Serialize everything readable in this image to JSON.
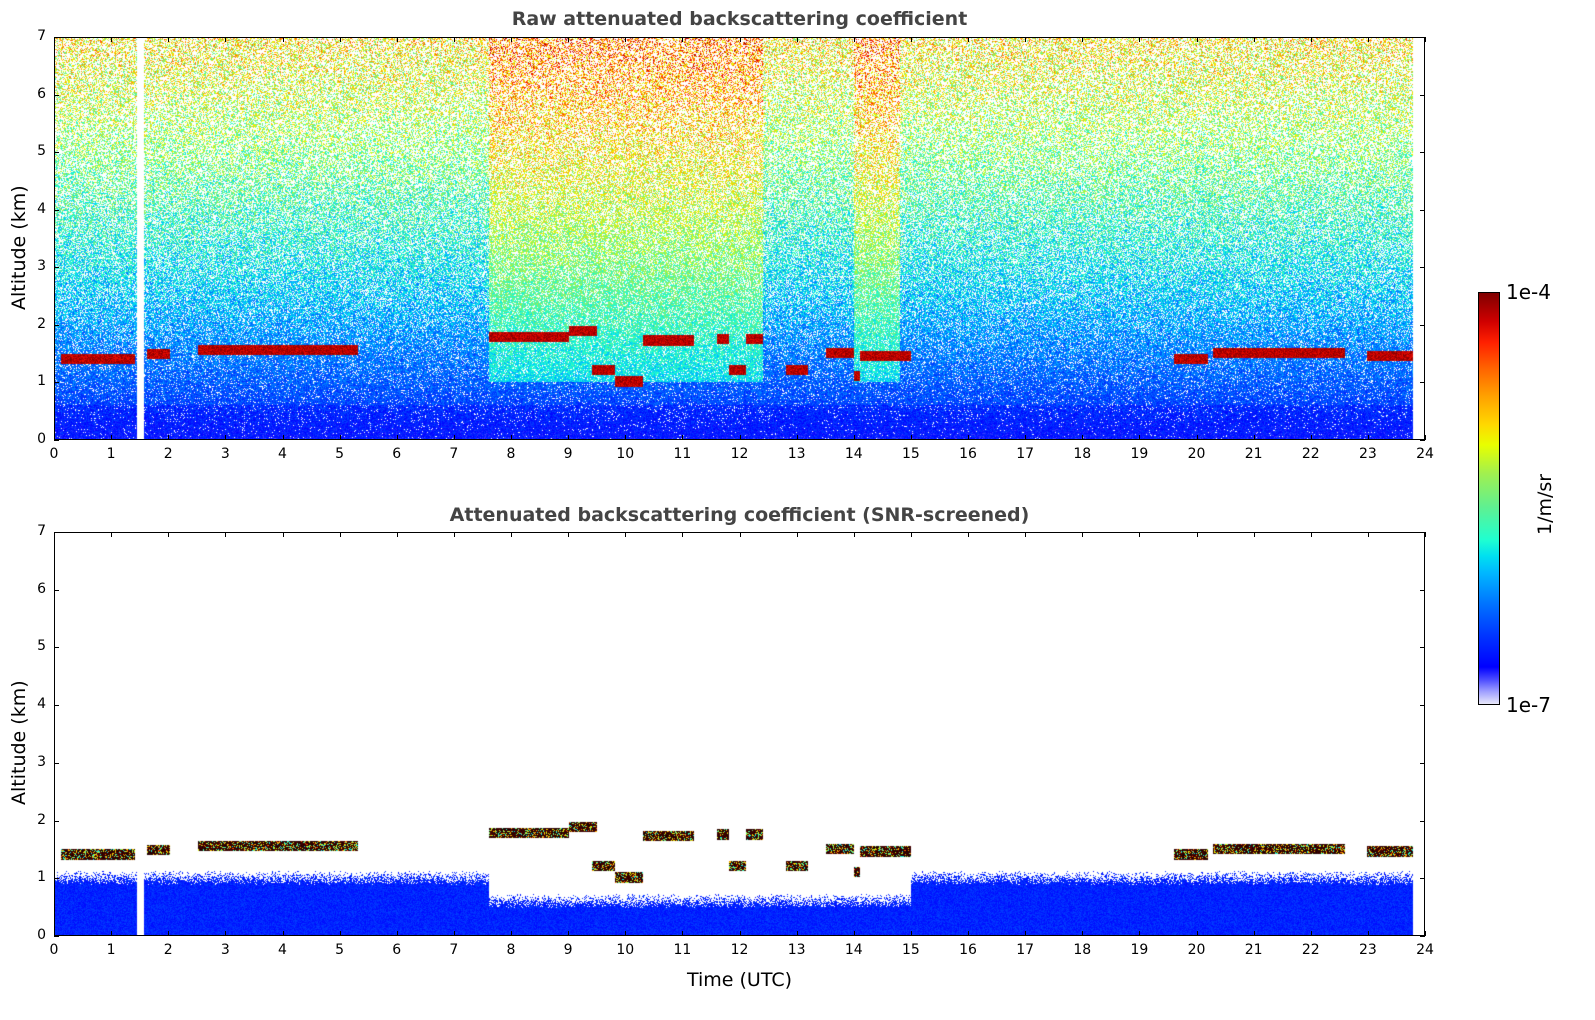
{
  "colorbar": {
    "max_label": "1e-4",
    "min_label": "1e-7",
    "unit_label": "1/m/sr",
    "scale": "log"
  },
  "xlabel": "Time (UTC)",
  "chart_data": [
    {
      "type": "heatmap",
      "title": "Raw attenuated backscattering coefficient",
      "ylabel": "Altitude (km)",
      "xlim": [
        0,
        24
      ],
      "ylim": [
        0,
        7
      ],
      "xticks": [
        "0",
        "1",
        "2",
        "3",
        "4",
        "5",
        "6",
        "7",
        "8",
        "9",
        "10",
        "11",
        "12",
        "13",
        "14",
        "15",
        "16",
        "17",
        "18",
        "19",
        "20",
        "21",
        "22",
        "23",
        "24"
      ],
      "yticks": [
        "0",
        "1",
        "2",
        "3",
        "4",
        "5",
        "6",
        "7"
      ],
      "data_gap_hours": [
        1.43,
        1.55
      ],
      "data_end_hour": 23.8,
      "enhanced_background_hours": [
        [
          7.6,
          12.4
        ],
        [
          14.0,
          14.8
        ]
      ],
      "cloud_layers_km": [
        [
          0.1,
          1.4,
          1.4
        ],
        [
          1.6,
          2.0,
          1.48
        ],
        [
          2.5,
          5.3,
          1.55
        ],
        [
          7.6,
          9.0,
          1.78
        ],
        [
          9.0,
          9.5,
          1.88
        ],
        [
          9.4,
          9.8,
          1.2
        ],
        [
          9.8,
          10.3,
          1.0
        ],
        [
          10.3,
          11.2,
          1.72
        ],
        [
          11.6,
          11.8,
          1.75
        ],
        [
          11.8,
          12.1,
          1.2
        ],
        [
          12.1,
          12.4,
          1.75
        ],
        [
          12.8,
          13.2,
          1.2
        ],
        [
          13.5,
          14.0,
          1.5
        ],
        [
          14.0,
          14.1,
          1.1
        ],
        [
          14.1,
          15.0,
          1.45
        ],
        [
          19.6,
          20.2,
          1.4
        ],
        [
          20.3,
          22.6,
          1.5
        ],
        [
          23.0,
          23.8,
          1.45
        ]
      ]
    },
    {
      "type": "heatmap",
      "title": "Attenuated backscattering coefficient (SNR-screened)",
      "ylabel": "Altitude (km)",
      "xlim": [
        0,
        24
      ],
      "ylim": [
        0,
        7
      ],
      "xticks": [
        "0",
        "1",
        "2",
        "3",
        "4",
        "5",
        "6",
        "7",
        "8",
        "9",
        "10",
        "11",
        "12",
        "13",
        "14",
        "15",
        "16",
        "17",
        "18",
        "19",
        "20",
        "21",
        "22",
        "23",
        "24"
      ],
      "yticks": [
        "0",
        "1",
        "2",
        "3",
        "4",
        "5",
        "6",
        "7"
      ],
      "boundary_layer_top_km": [
        [
          0,
          7.6,
          1.0
        ],
        [
          7.6,
          15.0,
          0.6
        ],
        [
          15.0,
          24,
          1.0
        ]
      ]
    }
  ]
}
